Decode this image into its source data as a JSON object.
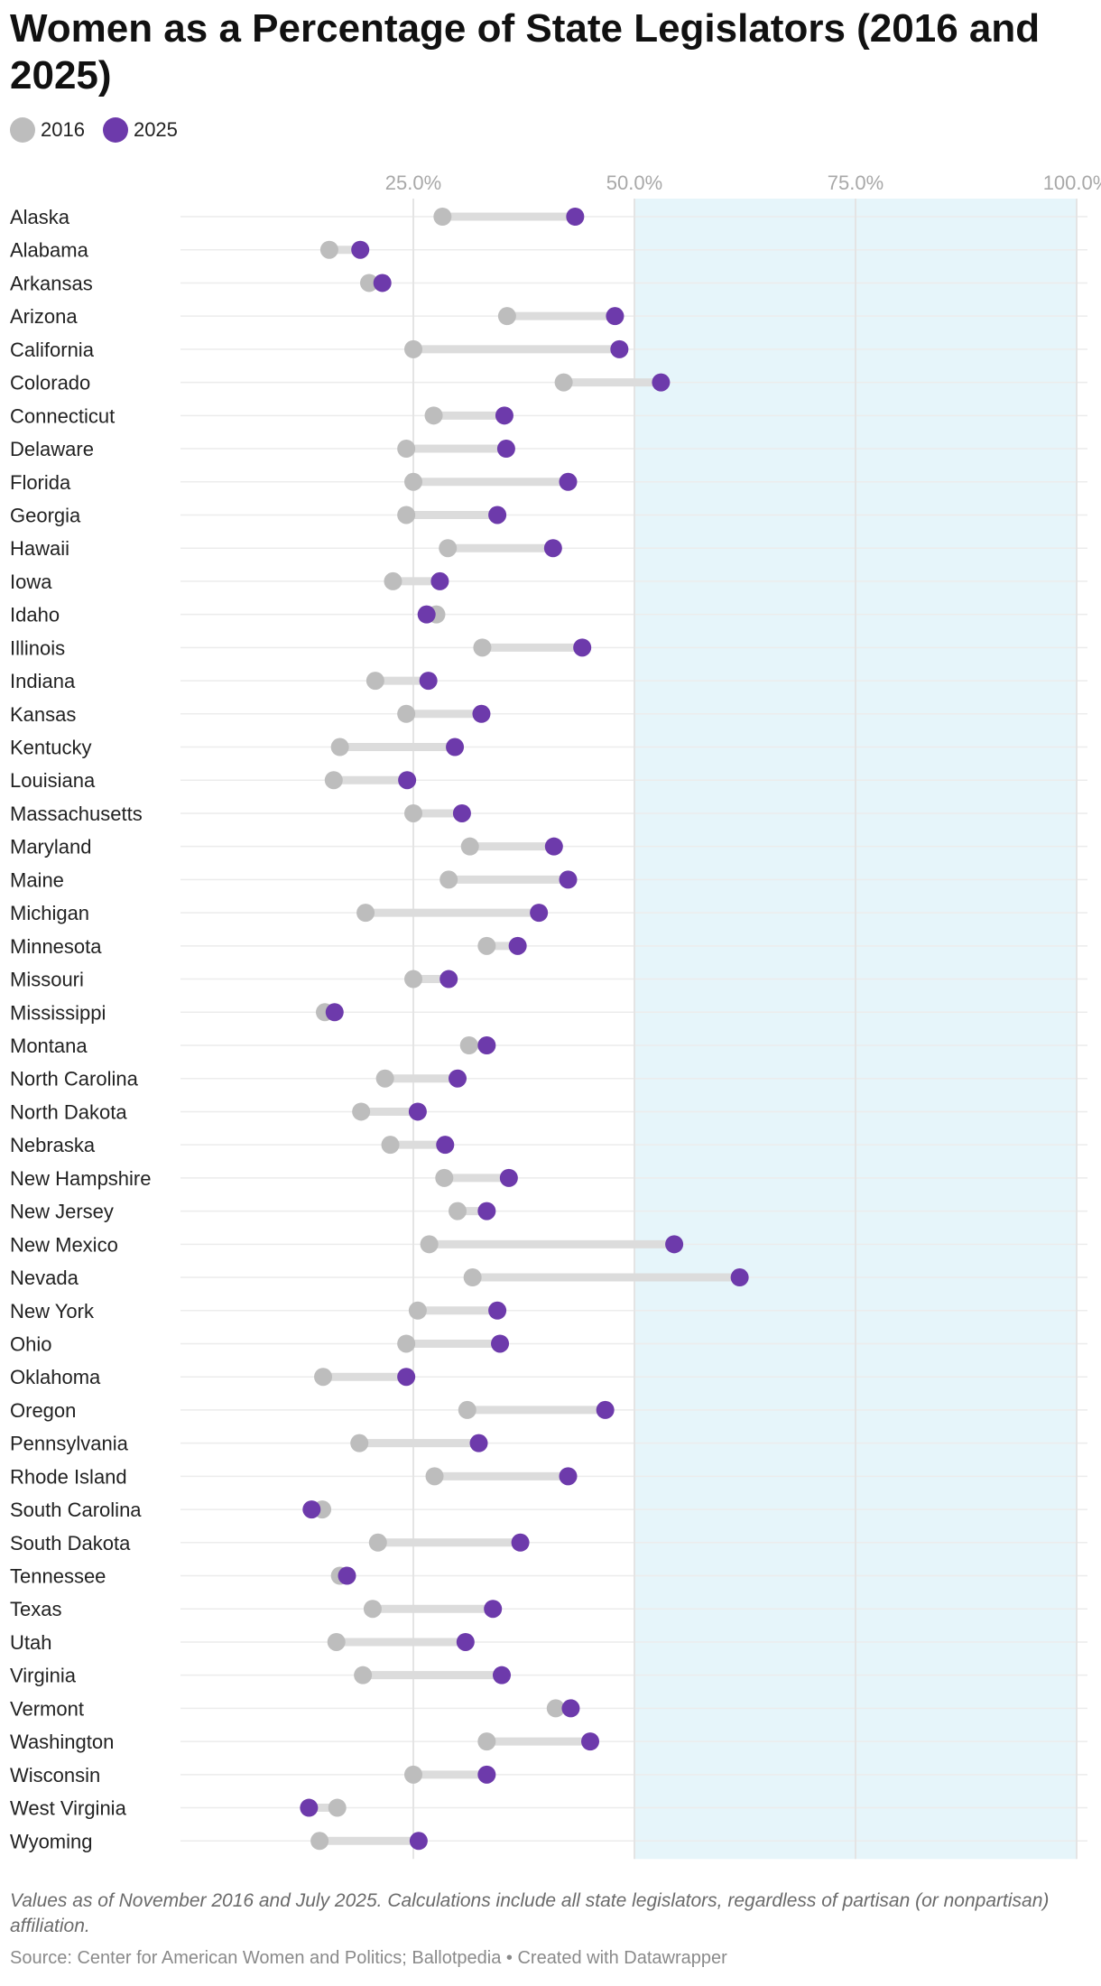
{
  "title": "Women as a Percentage of State Legislators (2016 and 2025)",
  "legend": [
    {
      "label": "2016",
      "color": "#bdbdbd"
    },
    {
      "label": "2025",
      "color": "#6d3aab"
    }
  ],
  "note": "Values as of November 2016 and July 2025. Calculations include all state legislators, regardless of partisan (or nonpartisan) affiliation.",
  "source": "Source: Center for American Women and Politics; Ballotpedia • Created with Datawrapper",
  "colors": {
    "y2016": "#bdbdbd",
    "y2025": "#6d3aab",
    "connector": "#dcdcdc",
    "highlight": "#e6f5fa",
    "grid": "#e4e4e4"
  },
  "chart_data": {
    "type": "range-dot",
    "xlim": [
      0,
      100
    ],
    "xticks": [
      25,
      50,
      75,
      100
    ],
    "xtick_labels": [
      "25.0%",
      "50.0%",
      "75.0%",
      "100.0%"
    ],
    "highlight_range": [
      50,
      100
    ],
    "series": [
      {
        "name": "2016"
      },
      {
        "name": "2025"
      }
    ],
    "rows": [
      {
        "state": "Alaska",
        "y2016": 28.3,
        "y2025": 43.3
      },
      {
        "state": "Alabama",
        "y2016": 15.5,
        "y2025": 19.0
      },
      {
        "state": "Arkansas",
        "y2016": 20.0,
        "y2025": 21.5
      },
      {
        "state": "Arizona",
        "y2016": 35.6,
        "y2025": 47.8
      },
      {
        "state": "California",
        "y2016": 25.0,
        "y2025": 48.3
      },
      {
        "state": "Colorado",
        "y2016": 42.0,
        "y2025": 53.0
      },
      {
        "state": "Connecticut",
        "y2016": 27.3,
        "y2025": 35.3
      },
      {
        "state": "Delaware",
        "y2016": 24.2,
        "y2025": 35.5
      },
      {
        "state": "Florida",
        "y2016": 25.0,
        "y2025": 42.5
      },
      {
        "state": "Georgia",
        "y2016": 24.2,
        "y2025": 34.5
      },
      {
        "state": "Hawaii",
        "y2016": 28.9,
        "y2025": 40.8
      },
      {
        "state": "Iowa",
        "y2016": 22.7,
        "y2025": 28.0
      },
      {
        "state": "Idaho",
        "y2016": 27.6,
        "y2025": 26.5
      },
      {
        "state": "Illinois",
        "y2016": 32.8,
        "y2025": 44.1
      },
      {
        "state": "Indiana",
        "y2016": 20.7,
        "y2025": 26.7
      },
      {
        "state": "Kansas",
        "y2016": 24.2,
        "y2025": 32.7
      },
      {
        "state": "Kentucky",
        "y2016": 16.7,
        "y2025": 29.7
      },
      {
        "state": "Louisiana",
        "y2016": 16.0,
        "y2025": 24.3
      },
      {
        "state": "Massachusetts",
        "y2016": 25.0,
        "y2025": 30.5
      },
      {
        "state": "Maryland",
        "y2016": 31.4,
        "y2025": 40.9
      },
      {
        "state": "Maine",
        "y2016": 29.0,
        "y2025": 42.5
      },
      {
        "state": "Michigan",
        "y2016": 19.6,
        "y2025": 39.2
      },
      {
        "state": "Minnesota",
        "y2016": 33.3,
        "y2025": 36.8
      },
      {
        "state": "Missouri",
        "y2016": 25.0,
        "y2025": 29.0
      },
      {
        "state": "Mississippi",
        "y2016": 15.0,
        "y2025": 16.1
      },
      {
        "state": "Montana",
        "y2016": 31.3,
        "y2025": 33.3
      },
      {
        "state": "North Carolina",
        "y2016": 21.8,
        "y2025": 30.0
      },
      {
        "state": "North Dakota",
        "y2016": 19.1,
        "y2025": 25.5
      },
      {
        "state": "Nebraska",
        "y2016": 22.4,
        "y2025": 28.6
      },
      {
        "state": "New Hampshire",
        "y2016": 28.5,
        "y2025": 35.8
      },
      {
        "state": "New Jersey",
        "y2016": 30.0,
        "y2025": 33.3
      },
      {
        "state": "New Mexico",
        "y2016": 26.8,
        "y2025": 54.5
      },
      {
        "state": "Nevada",
        "y2016": 31.7,
        "y2025": 61.9
      },
      {
        "state": "New York",
        "y2016": 25.5,
        "y2025": 34.5
      },
      {
        "state": "Ohio",
        "y2016": 24.2,
        "y2025": 34.8
      },
      {
        "state": "Oklahoma",
        "y2016": 14.8,
        "y2025": 24.2
      },
      {
        "state": "Oregon",
        "y2016": 31.1,
        "y2025": 46.7
      },
      {
        "state": "Pennsylvania",
        "y2016": 18.9,
        "y2025": 32.4
      },
      {
        "state": "Rhode Island",
        "y2016": 27.4,
        "y2025": 42.5
      },
      {
        "state": "South Carolina",
        "y2016": 14.7,
        "y2025": 13.5
      },
      {
        "state": "South Dakota",
        "y2016": 21.0,
        "y2025": 37.1
      },
      {
        "state": "Tennessee",
        "y2016": 16.7,
        "y2025": 17.5
      },
      {
        "state": "Texas",
        "y2016": 20.4,
        "y2025": 34.0
      },
      {
        "state": "Utah",
        "y2016": 16.3,
        "y2025": 30.9
      },
      {
        "state": "Virginia",
        "y2016": 19.3,
        "y2025": 35.0
      },
      {
        "state": "Vermont",
        "y2016": 41.1,
        "y2025": 42.8
      },
      {
        "state": "Washington",
        "y2016": 33.3,
        "y2025": 45.0
      },
      {
        "state": "Wisconsin",
        "y2016": 25.0,
        "y2025": 33.3
      },
      {
        "state": "West Virginia",
        "y2016": 16.4,
        "y2025": 13.2
      },
      {
        "state": "Wyoming",
        "y2016": 14.4,
        "y2025": 25.6
      }
    ]
  }
}
